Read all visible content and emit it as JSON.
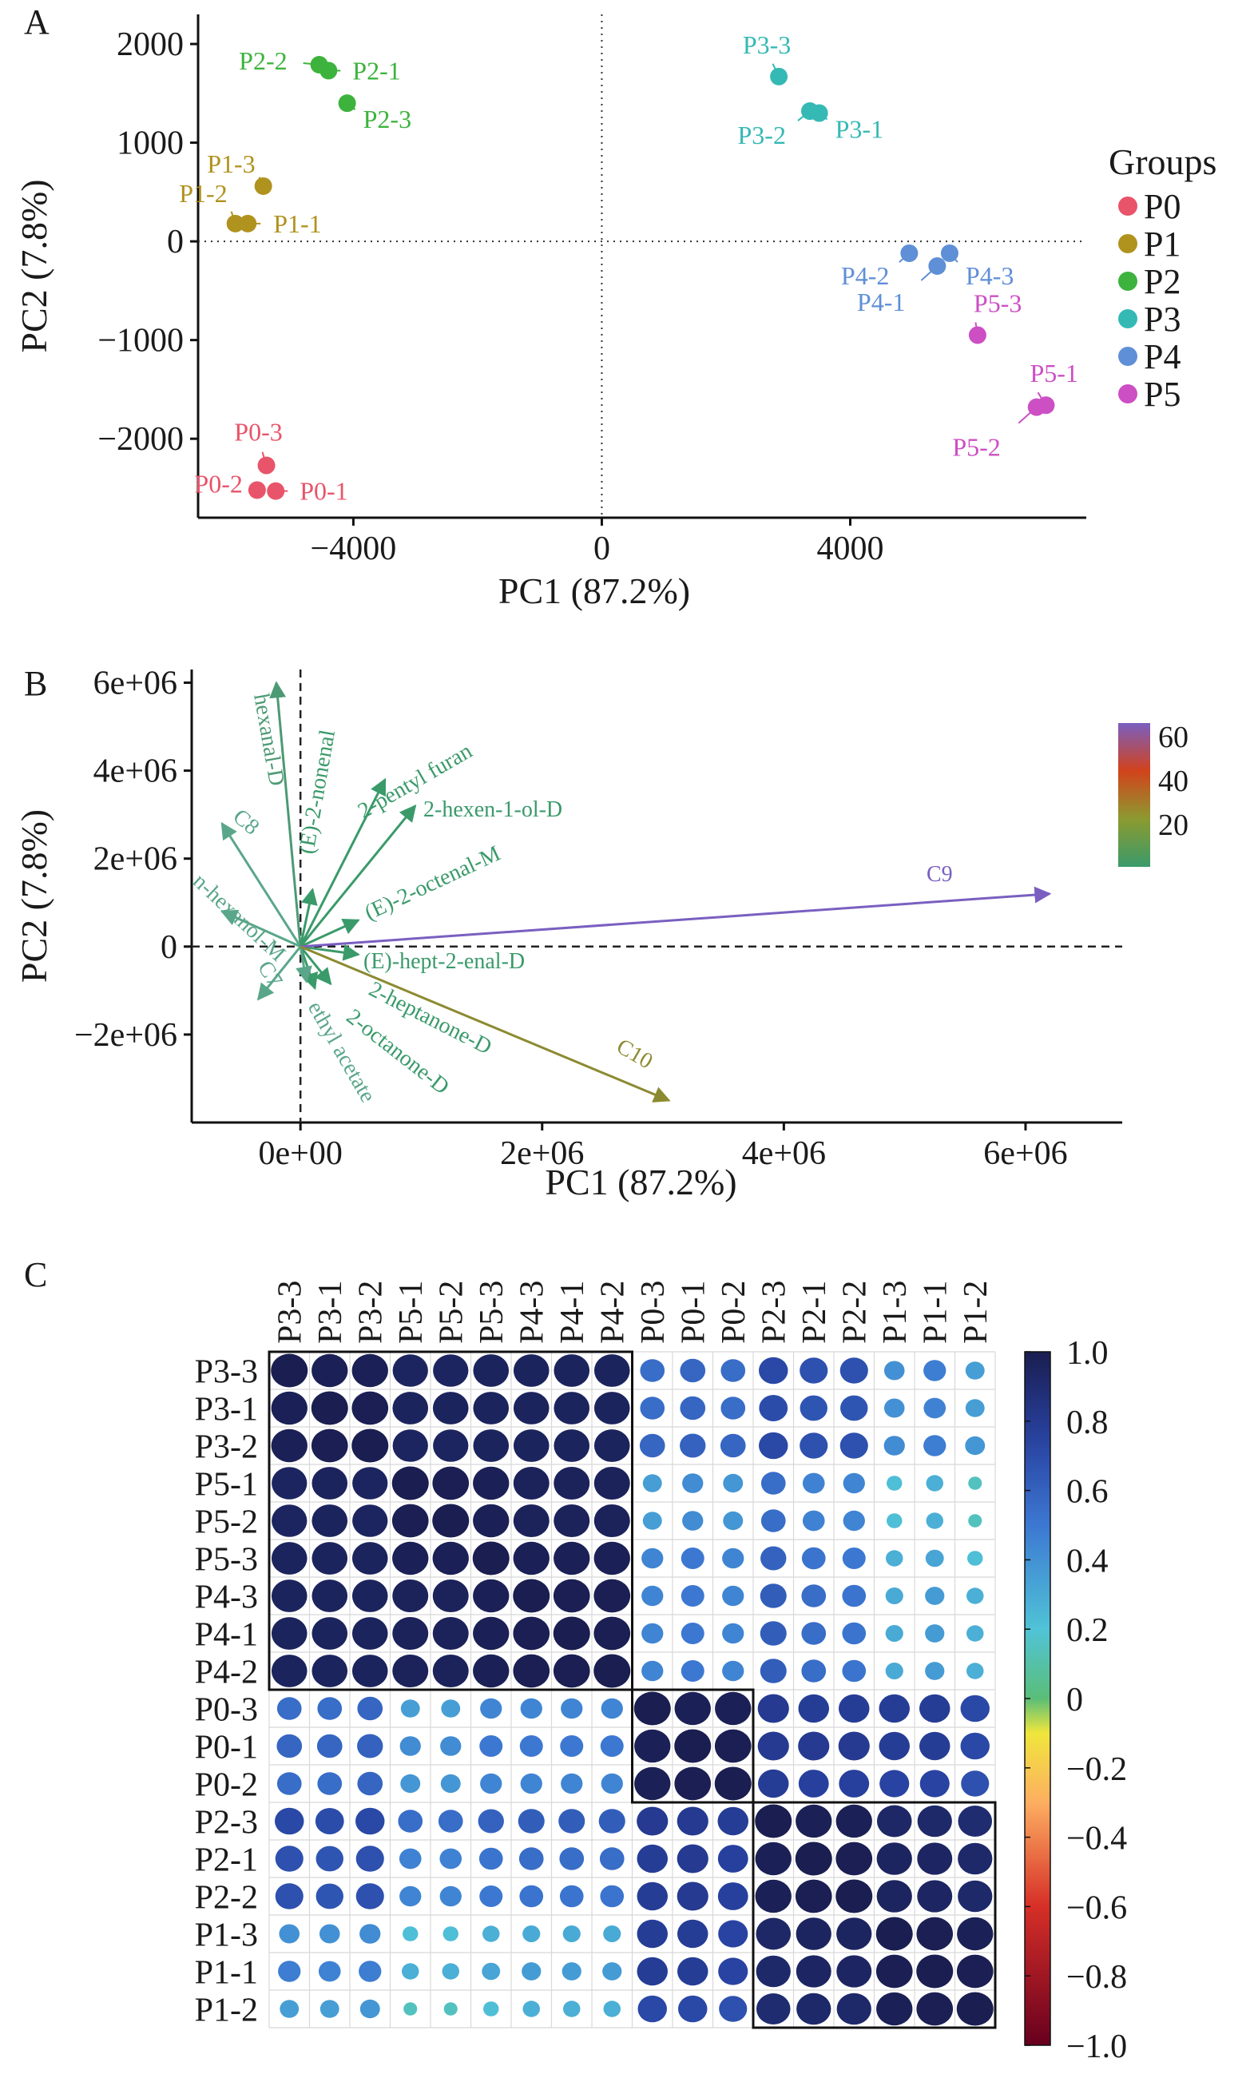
{
  "panels": {
    "A": {
      "letter": "A",
      "chart_data": {
        "type": "scatter",
        "xlabel": "PC1 (87.2%)",
        "ylabel": "PC2 (7.8%)",
        "xlim": [
          -6500,
          7800
        ],
        "ylim": [
          -2800,
          2300
        ],
        "xticks": [
          -4000,
          0,
          4000
        ],
        "xtick_labels": [
          "−4000",
          "0",
          "4000"
        ],
        "yticks": [
          2000,
          1000,
          0,
          -1000,
          -2000
        ],
        "ytick_labels": [
          "2000",
          "1000",
          "0",
          "−1000",
          "−2000"
        ],
        "zero_lines": "dotted",
        "legend_title": "Groups",
        "legend_position": "right",
        "groups": [
          {
            "name": "P0",
            "color": "#e8546a",
            "points": [
              {
                "label": "P0-1",
                "x": -5250,
                "y": -2530
              },
              {
                "label": "P0-2",
                "x": -5550,
                "y": -2520
              },
              {
                "label": "P0-3",
                "x": -5400,
                "y": -2270
              }
            ]
          },
          {
            "name": "P1",
            "color": "#b0921e",
            "points": [
              {
                "label": "P1-1",
                "x": -5700,
                "y": 180
              },
              {
                "label": "P1-2",
                "x": -5900,
                "y": 180
              },
              {
                "label": "P1-3",
                "x": -5450,
                "y": 560
              }
            ]
          },
          {
            "name": "P2",
            "color": "#3db33d",
            "points": [
              {
                "label": "P2-1",
                "x": -4400,
                "y": 1730
              },
              {
                "label": "P2-2",
                "x": -4550,
                "y": 1790
              },
              {
                "label": "P2-3",
                "x": -4100,
                "y": 1400
              }
            ]
          },
          {
            "name": "P3",
            "color": "#35b9b5",
            "points": [
              {
                "label": "P3-1",
                "x": 3500,
                "y": 1300
              },
              {
                "label": "P3-2",
                "x": 3350,
                "y": 1320
              },
              {
                "label": "P3-3",
                "x": 2850,
                "y": 1670
              }
            ]
          },
          {
            "name": "P4",
            "color": "#5f8fd6",
            "points": [
              {
                "label": "P4-1",
                "x": 5400,
                "y": -250
              },
              {
                "label": "P4-2",
                "x": 4950,
                "y": -120
              },
              {
                "label": "P4-3",
                "x": 5600,
                "y": -120
              }
            ]
          },
          {
            "name": "P5",
            "color": "#cc4fc4",
            "points": [
              {
                "label": "P5-1",
                "x": 7150,
                "y": -1660
              },
              {
                "label": "P5-2",
                "x": 7000,
                "y": -1680
              },
              {
                "label": "P5-3",
                "x": 6050,
                "y": -950
              }
            ]
          }
        ]
      }
    },
    "B": {
      "letter": "B",
      "chart_data": {
        "type": "biplot",
        "xlabel": "PC1 (87.2%)",
        "ylabel": "PC2 (7.8%)",
        "xlim": [
          -900000,
          6800000
        ],
        "ylim": [
          -4000000,
          6300000
        ],
        "xticks": [
          0,
          2000000,
          4000000,
          6000000
        ],
        "xtick_labels": [
          "0e+00",
          "2e+06",
          "4e+06",
          "6e+06"
        ],
        "yticks": [
          6000000,
          4000000,
          2000000,
          0,
          -2000000
        ],
        "ytick_labels": [
          "6e+06",
          "4e+06",
          "2e+06",
          "0",
          "−2e+06"
        ],
        "zero_lines": "dashed",
        "colorbar": {
          "ticks": [
            60,
            40,
            20
          ],
          "colors": [
            "#7a5fc0",
            "#d2431c",
            "#8c9a30",
            "#3a9a6a"
          ]
        },
        "loadings": [
          {
            "label": "hexanal-D",
            "x": -200000,
            "y": 6000000,
            "color": "#4c9a74"
          },
          {
            "label": "C8",
            "x": -650000,
            "y": 2800000,
            "color": "#5aa68a"
          },
          {
            "label": "n-hexanol-M",
            "x": -650000,
            "y": 800000,
            "color": "#5aa68a"
          },
          {
            "label": "C7",
            "x": -350000,
            "y": -1200000,
            "color": "#5aa68a"
          },
          {
            "label": "(E)-2-nonenal",
            "x": 100000,
            "y": 1300000,
            "color": "#3a9a6a"
          },
          {
            "label": "2-pentyl furan",
            "x": 700000,
            "y": 3800000,
            "color": "#3a9a6a"
          },
          {
            "label": "2-hexen-1-ol-D",
            "x": 950000,
            "y": 3200000,
            "color": "#3a9a6a"
          },
          {
            "label": "(E)-2-octenal-M",
            "x": 480000,
            "y": 600000,
            "color": "#3a9a6a"
          },
          {
            "label": "(E)-hept-2-enal-D",
            "x": 480000,
            "y": -180000,
            "color": "#3a9a6a"
          },
          {
            "label": "2-heptanone-D",
            "x": 250000,
            "y": -850000,
            "color": "#3a9a6a"
          },
          {
            "label": "2-octanone-D",
            "x": 120000,
            "y": -950000,
            "color": "#3a9a6a"
          },
          {
            "label": "ethyl acetate",
            "x": 50000,
            "y": -800000,
            "color": "#5aa68a"
          },
          {
            "label": "C9",
            "x": 6200000,
            "y": 1200000,
            "color": "#7a5fc0"
          },
          {
            "label": "C10",
            "x": 3050000,
            "y": -3500000,
            "color": "#8c8a30"
          }
        ]
      }
    },
    "C": {
      "letter": "C",
      "chart_data": {
        "type": "heatmap",
        "labels": [
          "P3-3",
          "P3-1",
          "P3-2",
          "P5-1",
          "P5-2",
          "P5-3",
          "P4-3",
          "P4-1",
          "P4-2",
          "P0-3",
          "P0-1",
          "P0-2",
          "P2-3",
          "P2-1",
          "P2-2",
          "P1-3",
          "P1-1",
          "P1-2"
        ],
        "values": [
          [
            1.0,
            0.98,
            0.98,
            0.95,
            0.95,
            0.96,
            0.96,
            0.96,
            0.96,
            0.55,
            0.58,
            0.55,
            0.72,
            0.68,
            0.68,
            0.4,
            0.48,
            0.35
          ],
          [
            0.98,
            1.0,
            0.99,
            0.96,
            0.96,
            0.96,
            0.96,
            0.96,
            0.96,
            0.55,
            0.58,
            0.55,
            0.7,
            0.66,
            0.66,
            0.4,
            0.46,
            0.35
          ],
          [
            0.98,
            0.99,
            1.0,
            0.95,
            0.95,
            0.96,
            0.96,
            0.96,
            0.96,
            0.58,
            0.6,
            0.58,
            0.72,
            0.68,
            0.68,
            0.42,
            0.48,
            0.38
          ],
          [
            0.95,
            0.96,
            0.95,
            1.0,
            0.99,
            0.98,
            0.97,
            0.97,
            0.97,
            0.35,
            0.42,
            0.38,
            0.55,
            0.46,
            0.45,
            0.22,
            0.28,
            0.15
          ],
          [
            0.95,
            0.96,
            0.95,
            0.99,
            1.0,
            0.98,
            0.97,
            0.97,
            0.97,
            0.35,
            0.42,
            0.38,
            0.55,
            0.46,
            0.45,
            0.22,
            0.28,
            0.15
          ],
          [
            0.96,
            0.96,
            0.96,
            0.98,
            0.98,
            1.0,
            0.98,
            0.98,
            0.98,
            0.45,
            0.5,
            0.45,
            0.6,
            0.52,
            0.5,
            0.28,
            0.32,
            0.22
          ],
          [
            0.96,
            0.96,
            0.96,
            0.97,
            0.97,
            0.98,
            1.0,
            0.99,
            0.99,
            0.45,
            0.5,
            0.45,
            0.62,
            0.55,
            0.52,
            0.3,
            0.36,
            0.28
          ],
          [
            0.96,
            0.96,
            0.96,
            0.97,
            0.97,
            0.98,
            0.99,
            1.0,
            0.99,
            0.45,
            0.5,
            0.45,
            0.62,
            0.55,
            0.52,
            0.3,
            0.36,
            0.28
          ],
          [
            0.96,
            0.96,
            0.96,
            0.97,
            0.97,
            0.98,
            0.99,
            0.99,
            1.0,
            0.45,
            0.5,
            0.45,
            0.62,
            0.55,
            0.52,
            0.3,
            0.36,
            0.28
          ],
          [
            0.55,
            0.55,
            0.58,
            0.35,
            0.35,
            0.45,
            0.45,
            0.45,
            0.45,
            1.0,
            0.98,
            0.98,
            0.8,
            0.78,
            0.78,
            0.78,
            0.78,
            0.72
          ],
          [
            0.58,
            0.58,
            0.6,
            0.42,
            0.42,
            0.5,
            0.5,
            0.5,
            0.5,
            0.98,
            1.0,
            0.99,
            0.8,
            0.8,
            0.8,
            0.78,
            0.78,
            0.72
          ],
          [
            0.55,
            0.55,
            0.58,
            0.38,
            0.38,
            0.45,
            0.45,
            0.45,
            0.45,
            0.98,
            0.99,
            1.0,
            0.78,
            0.76,
            0.76,
            0.74,
            0.74,
            0.68
          ],
          [
            0.72,
            0.7,
            0.72,
            0.55,
            0.55,
            0.6,
            0.62,
            0.62,
            0.62,
            0.8,
            0.8,
            0.78,
            1.0,
            0.98,
            0.98,
            0.93,
            0.92,
            0.9
          ],
          [
            0.68,
            0.66,
            0.68,
            0.46,
            0.46,
            0.52,
            0.55,
            0.55,
            0.55,
            0.78,
            0.8,
            0.76,
            0.98,
            1.0,
            0.99,
            0.95,
            0.94,
            0.92
          ],
          [
            0.68,
            0.66,
            0.68,
            0.45,
            0.45,
            0.5,
            0.52,
            0.52,
            0.52,
            0.78,
            0.8,
            0.76,
            0.98,
            0.99,
            1.0,
            0.95,
            0.94,
            0.92
          ],
          [
            0.4,
            0.4,
            0.42,
            0.22,
            0.22,
            0.28,
            0.3,
            0.3,
            0.3,
            0.78,
            0.78,
            0.74,
            0.93,
            0.95,
            0.95,
            1.0,
            0.99,
            0.98
          ],
          [
            0.48,
            0.46,
            0.48,
            0.28,
            0.28,
            0.32,
            0.36,
            0.36,
            0.36,
            0.78,
            0.78,
            0.74,
            0.92,
            0.94,
            0.94,
            0.99,
            1.0,
            0.99
          ],
          [
            0.35,
            0.35,
            0.38,
            0.15,
            0.15,
            0.22,
            0.28,
            0.28,
            0.28,
            0.72,
            0.72,
            0.68,
            0.9,
            0.92,
            0.92,
            0.98,
            0.99,
            1.0
          ]
        ],
        "clusters": [
          [
            0,
            8
          ],
          [
            9,
            11
          ],
          [
            12,
            17
          ]
        ],
        "colorbar": {
          "ticks": [
            "1.0",
            "0.8",
            "0.6",
            "0.4",
            "0.2",
            "0",
            "−0.2",
            "−0.4",
            "−0.6",
            "−0.8",
            "−1.0"
          ],
          "range": [
            -1,
            1
          ]
        }
      }
    }
  }
}
